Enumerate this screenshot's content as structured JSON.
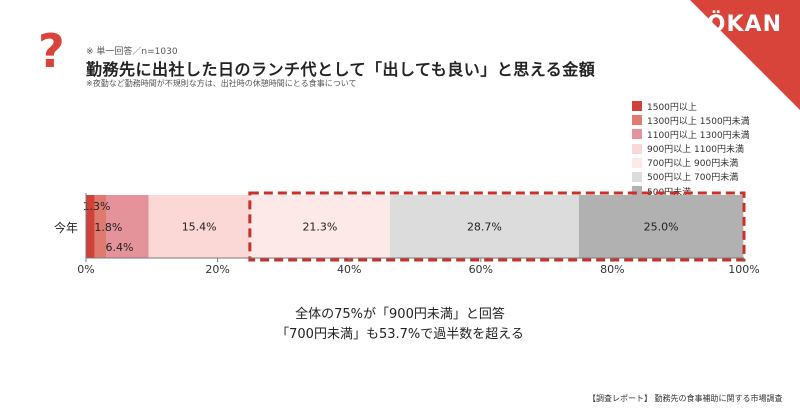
{
  "brand": "ÖKAN",
  "header": {
    "mark": "?",
    "note_top": "※ 単一回答／n=1030",
    "title": "勤務先に出社した日のランチ代として「出しても良い」と思える金額",
    "note_bottom": "※夜勤など勤務時間が不規則な方は、出社時の休憩時間にとる食事について"
  },
  "chart_data": {
    "type": "bar",
    "orientation": "horizontal",
    "stacked": true,
    "categories": [
      "今年"
    ],
    "series": [
      {
        "name": "1500円以上",
        "values": [
          1.3
        ],
        "color": "#d0413a"
      },
      {
        "name": "1300円以上 1500円未満",
        "values": [
          1.8
        ],
        "color": "#e07a70"
      },
      {
        "name": "1100円以上 1300円未満",
        "values": [
          6.4
        ],
        "color": "#e4939b"
      },
      {
        "name": "900円以上 1100円未満",
        "values": [
          15.4
        ],
        "color": "#fbd8d6"
      },
      {
        "name": "700円以上 900円未満",
        "values": [
          21.3
        ],
        "color": "#fde9e8"
      },
      {
        "name": "500円以上 700円未満",
        "values": [
          28.7
        ],
        "color": "#dcdcdc"
      },
      {
        "name": "500円未満",
        "values": [
          25.0
        ],
        "color": "#b1b1b1"
      }
    ],
    "data_labels": [
      "1.3%",
      "1.8%",
      "6.4%",
      "15.4%",
      "21.3%",
      "28.7%",
      "25.0%"
    ],
    "x_ticks": [
      "0%",
      "20%",
      "40%",
      "60%",
      "80%",
      "100%"
    ],
    "xlim": [
      0,
      100
    ],
    "grid": false,
    "legend": "top-right",
    "highlight_color": "#c6322a",
    "axis_color": "#7a7a7a"
  },
  "annotation": {
    "line1": "全体の75%が「900円未満」と回答",
    "line2": "「700円未満」も53.7%で過半数を超える"
  },
  "footer": "【調査レポート】 勤務先の食事補助に関する市場調査"
}
